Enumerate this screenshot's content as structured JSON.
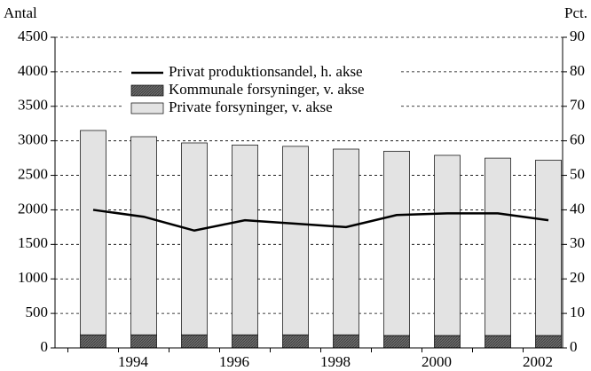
{
  "chart_data": {
    "type": "bar-line",
    "y_label": "Antal",
    "y2_label": "Pct.",
    "categories": [
      null,
      "1994",
      null,
      "1996",
      null,
      "1998",
      null,
      "2000",
      null,
      "2002"
    ],
    "series": [
      {
        "name": "Privat produktionsandel, h. akse",
        "type": "line",
        "axis": "y2",
        "color": "#000000",
        "values": [
          40,
          38,
          34,
          37,
          36,
          35,
          38.5,
          39,
          39,
          37
        ]
      },
      {
        "name": "Kommunale forsyninger, v. akse",
        "type": "bar",
        "color": "#6b6b6b",
        "values": [
          190,
          190,
          190,
          190,
          190,
          190,
          180,
          180,
          180,
          180
        ]
      },
      {
        "name": "Private forsyninger, v. akse",
        "type": "bar",
        "color": "#e3e3e3",
        "values": [
          2960,
          2870,
          2780,
          2750,
          2730,
          2690,
          2670,
          2610,
          2570,
          2540
        ]
      }
    ],
    "stacked": true,
    "ylim": [
      0,
      4500
    ],
    "yticks": [
      0,
      500,
      1000,
      1500,
      2000,
      2500,
      3000,
      3500,
      4000,
      4500
    ],
    "y2lim": [
      0,
      90
    ],
    "y2ticks": [
      0,
      10,
      20,
      30,
      40,
      50,
      60,
      70,
      80,
      90
    ],
    "grid": true
  }
}
